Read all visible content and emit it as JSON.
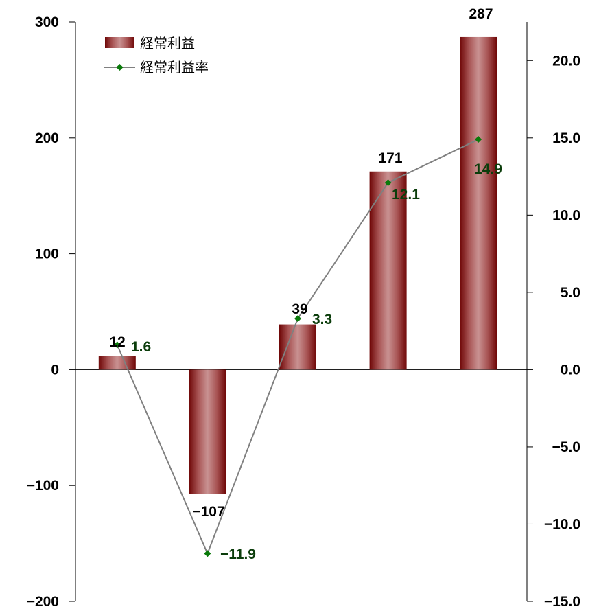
{
  "chart_data": {
    "type": "bar+line",
    "categories": [
      "",
      "",
      "",
      "",
      ""
    ],
    "series": [
      {
        "name": "経常利益",
        "type": "bar",
        "axis": "left",
        "values": [
          12,
          -107,
          39,
          171,
          287
        ],
        "labels": [
          "12",
          "−107",
          "39",
          "171",
          "287"
        ],
        "color": "#7a0a0a"
      },
      {
        "name": "経常利益率",
        "type": "line",
        "axis": "right",
        "values": [
          1.6,
          -11.9,
          3.3,
          12.1,
          14.9
        ],
        "labels": [
          "1.6",
          "−11.9",
          "3.3",
          "12.1",
          "14.9"
        ],
        "color": "#808080",
        "marker_color": "#0a7a0a"
      }
    ],
    "y_left": {
      "min": -200,
      "max": 300,
      "ticks": [
        300,
        200,
        100,
        0,
        -100,
        -200
      ],
      "tick_labels": [
        "300",
        "200",
        "100",
        "0",
        "−100",
        "−200"
      ]
    },
    "y_right": {
      "min": -15,
      "max": 22.5,
      "ticks": [
        20,
        15,
        10,
        5,
        0,
        -5,
        -10,
        -15
      ],
      "tick_labels": [
        "20.0",
        "15.0",
        "10.0",
        "5.0",
        "0.0",
        "−5.0",
        "−10.0",
        "−15.0"
      ]
    },
    "legend": {
      "position": "top-left",
      "entries": [
        "経常利益",
        "経常利益率"
      ]
    },
    "grid": false
  }
}
